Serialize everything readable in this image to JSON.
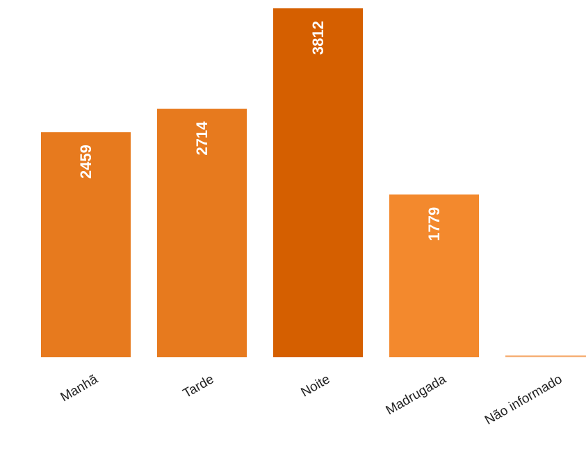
{
  "chart_data": {
    "type": "bar",
    "categories": [
      "Manhã",
      "Tarde",
      "Noite",
      "Madrugada",
      "Não informado"
    ],
    "values": [
      2459,
      2714,
      3812,
      1779,
      20
    ],
    "data_labels": [
      "2459",
      "2714",
      "3812",
      "1779",
      ""
    ],
    "bar_colors": [
      "#e77a1e",
      "#e77a1e",
      "#d55f00",
      "#f3892d",
      "#f6b27a"
    ],
    "ylim": [
      0,
      3812
    ],
    "grid": false,
    "title": "",
    "xlabel": "",
    "ylabel": ""
  }
}
